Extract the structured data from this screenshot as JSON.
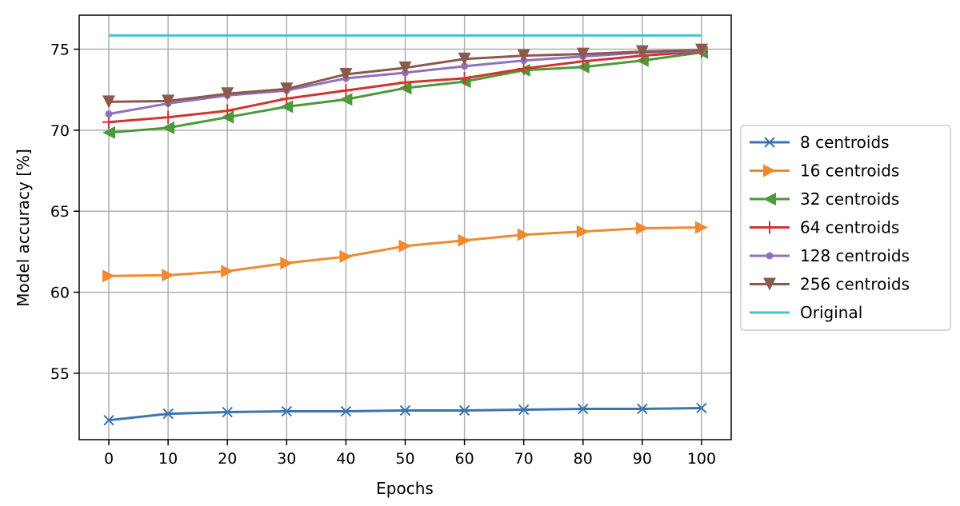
{
  "chart_data": {
    "type": "line",
    "title": "",
    "xlabel": "Epochs",
    "ylabel": "Model accuracy [%]",
    "xlim": [
      -5,
      105
    ],
    "ylim": [
      50.9,
      77.1
    ],
    "xticks": [
      0,
      10,
      20,
      30,
      40,
      50,
      60,
      70,
      80,
      90,
      100
    ],
    "yticks": [
      55,
      60,
      65,
      70,
      75
    ],
    "grid": true,
    "legend_position": "right, outside",
    "x": [
      0,
      10,
      20,
      30,
      40,
      50,
      60,
      70,
      80,
      90,
      100
    ],
    "series": [
      {
        "name": "8 centroids",
        "color": "#3a75b0",
        "marker": "x",
        "values": [
          52.1,
          52.5,
          52.6,
          52.65,
          52.65,
          52.7,
          52.7,
          52.75,
          52.8,
          52.8,
          52.85
        ]
      },
      {
        "name": "16 centroids",
        "color": "#f08a30",
        "marker": "triangle-right",
        "values": [
          61.0,
          61.05,
          61.3,
          61.8,
          62.2,
          62.85,
          63.2,
          63.55,
          63.75,
          63.95,
          64.0
        ]
      },
      {
        "name": "32 centroids",
        "color": "#4a9a3a",
        "marker": "triangle-left",
        "values": [
          69.85,
          70.15,
          70.8,
          71.45,
          71.9,
          72.6,
          73.0,
          73.7,
          73.9,
          74.3,
          74.8
        ]
      },
      {
        "name": "64 centroids",
        "color": "#d03530",
        "marker": "plus",
        "values": [
          70.5,
          70.8,
          71.2,
          71.95,
          72.45,
          72.95,
          73.2,
          73.8,
          74.25,
          74.6,
          74.85
        ]
      },
      {
        "name": "128 centroids",
        "color": "#9070c0",
        "marker": "circle",
        "values": [
          71.0,
          71.65,
          72.15,
          72.45,
          73.2,
          73.55,
          73.95,
          74.3,
          74.55,
          74.8,
          74.9
        ]
      },
      {
        "name": "256 centroids",
        "color": "#8b5a4a",
        "marker": "triangle-down",
        "values": [
          71.75,
          71.8,
          72.25,
          72.55,
          73.45,
          73.85,
          74.4,
          74.6,
          74.7,
          74.85,
          74.95
        ]
      },
      {
        "name": "Original",
        "color": "#4cbfd0",
        "marker": "none",
        "values": [
          75.85,
          75.85,
          75.85,
          75.85,
          75.85,
          75.85,
          75.85,
          75.85,
          75.85,
          75.85,
          75.85
        ]
      }
    ]
  }
}
